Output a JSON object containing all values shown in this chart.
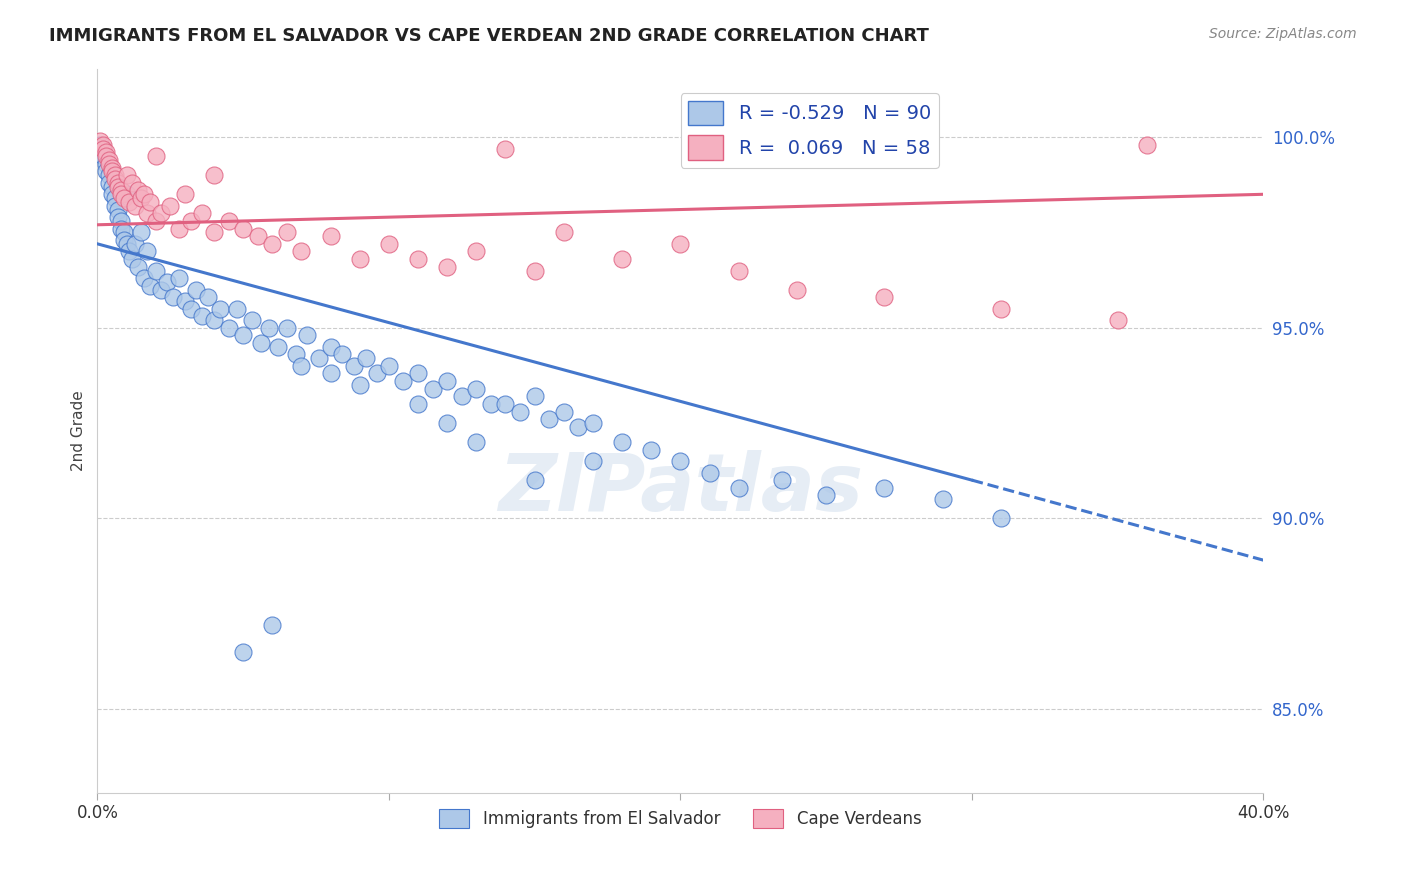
{
  "title": "IMMIGRANTS FROM EL SALVADOR VS CAPE VERDEAN 2ND GRADE CORRELATION CHART",
  "source": "Source: ZipAtlas.com",
  "ylabel": "2nd Grade",
  "yticks": [
    "85.0%",
    "90.0%",
    "95.0%",
    "100.0%"
  ],
  "ytick_vals": [
    0.85,
    0.9,
    0.95,
    1.0
  ],
  "xrange": [
    0.0,
    0.4
  ],
  "yrange": [
    0.828,
    1.018
  ],
  "blue_R": "-0.529",
  "blue_N": "90",
  "pink_R": "0.069",
  "pink_N": "58",
  "blue_color": "#adc8e8",
  "pink_color": "#f5b0c0",
  "blue_line_color": "#4477cc",
  "pink_line_color": "#e06080",
  "legend_label_blue": "Immigrants from El Salvador",
  "legend_label_pink": "Cape Verdeans",
  "watermark": "ZIPatlas",
  "blue_line_x0": 0.0,
  "blue_line_y0": 0.972,
  "blue_line_x1": 0.3,
  "blue_line_y1": 0.91,
  "blue_line_dash_x1": 0.4,
  "blue_line_dash_y1": 0.889,
  "pink_line_x0": 0.0,
  "pink_line_y0": 0.977,
  "pink_line_x1": 0.4,
  "pink_line_y1": 0.985,
  "blue_points_x": [
    0.001,
    0.002,
    0.002,
    0.003,
    0.003,
    0.004,
    0.004,
    0.005,
    0.005,
    0.006,
    0.006,
    0.007,
    0.007,
    0.008,
    0.008,
    0.009,
    0.009,
    0.01,
    0.01,
    0.011,
    0.012,
    0.013,
    0.014,
    0.015,
    0.016,
    0.017,
    0.018,
    0.02,
    0.022,
    0.024,
    0.026,
    0.028,
    0.03,
    0.032,
    0.034,
    0.036,
    0.038,
    0.04,
    0.042,
    0.045,
    0.048,
    0.05,
    0.053,
    0.056,
    0.059,
    0.062,
    0.065,
    0.068,
    0.072,
    0.076,
    0.08,
    0.084,
    0.088,
    0.092,
    0.096,
    0.1,
    0.105,
    0.11,
    0.115,
    0.12,
    0.125,
    0.13,
    0.135,
    0.14,
    0.145,
    0.15,
    0.155,
    0.16,
    0.165,
    0.17,
    0.18,
    0.19,
    0.2,
    0.21,
    0.22,
    0.235,
    0.25,
    0.27,
    0.29,
    0.31,
    0.15,
    0.17,
    0.13,
    0.12,
    0.11,
    0.09,
    0.08,
    0.07,
    0.06,
    0.05
  ],
  "blue_points_y": [
    0.998,
    0.997,
    0.995,
    0.993,
    0.991,
    0.99,
    0.988,
    0.987,
    0.985,
    0.984,
    0.982,
    0.981,
    0.979,
    0.978,
    0.976,
    0.975,
    0.973,
    0.985,
    0.972,
    0.97,
    0.968,
    0.972,
    0.966,
    0.975,
    0.963,
    0.97,
    0.961,
    0.965,
    0.96,
    0.962,
    0.958,
    0.963,
    0.957,
    0.955,
    0.96,
    0.953,
    0.958,
    0.952,
    0.955,
    0.95,
    0.955,
    0.948,
    0.952,
    0.946,
    0.95,
    0.945,
    0.95,
    0.943,
    0.948,
    0.942,
    0.945,
    0.943,
    0.94,
    0.942,
    0.938,
    0.94,
    0.936,
    0.938,
    0.934,
    0.936,
    0.932,
    0.934,
    0.93,
    0.93,
    0.928,
    0.932,
    0.926,
    0.928,
    0.924,
    0.925,
    0.92,
    0.918,
    0.915,
    0.912,
    0.908,
    0.91,
    0.906,
    0.908,
    0.905,
    0.9,
    0.91,
    0.915,
    0.92,
    0.925,
    0.93,
    0.935,
    0.938,
    0.94,
    0.872,
    0.865
  ],
  "pink_points_x": [
    0.001,
    0.002,
    0.002,
    0.003,
    0.003,
    0.004,
    0.004,
    0.005,
    0.005,
    0.006,
    0.006,
    0.007,
    0.007,
    0.008,
    0.008,
    0.009,
    0.01,
    0.011,
    0.012,
    0.013,
    0.014,
    0.015,
    0.016,
    0.017,
    0.018,
    0.02,
    0.022,
    0.025,
    0.028,
    0.032,
    0.036,
    0.04,
    0.045,
    0.05,
    0.055,
    0.06,
    0.065,
    0.07,
    0.08,
    0.09,
    0.1,
    0.11,
    0.12,
    0.13,
    0.14,
    0.15,
    0.16,
    0.18,
    0.2,
    0.22,
    0.24,
    0.27,
    0.31,
    0.35,
    0.02,
    0.03,
    0.04,
    0.36
  ],
  "pink_points_y": [
    0.999,
    0.998,
    0.997,
    0.996,
    0.995,
    0.994,
    0.993,
    0.992,
    0.991,
    0.99,
    0.989,
    0.988,
    0.987,
    0.986,
    0.985,
    0.984,
    0.99,
    0.983,
    0.988,
    0.982,
    0.986,
    0.984,
    0.985,
    0.98,
    0.983,
    0.978,
    0.98,
    0.982,
    0.976,
    0.978,
    0.98,
    0.975,
    0.978,
    0.976,
    0.974,
    0.972,
    0.975,
    0.97,
    0.974,
    0.968,
    0.972,
    0.968,
    0.966,
    0.97,
    0.997,
    0.965,
    0.975,
    0.968,
    0.972,
    0.965,
    0.96,
    0.958,
    0.955,
    0.952,
    0.995,
    0.985,
    0.99,
    0.998
  ]
}
